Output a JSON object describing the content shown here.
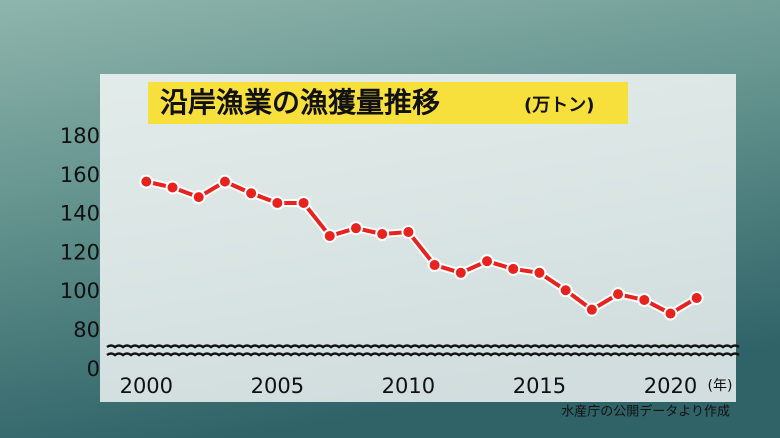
{
  "chart_data": {
    "type": "line",
    "title": "沿岸漁業の漁獲量推移",
    "unit": "(万トン)",
    "x_label": "(年)",
    "source": "水産庁の公開データより作成",
    "x": [
      2000,
      2001,
      2002,
      2003,
      2004,
      2005,
      2006,
      2007,
      2008,
      2009,
      2010,
      2011,
      2012,
      2013,
      2014,
      2015,
      2016,
      2017,
      2018,
      2019,
      2020,
      2021
    ],
    "series": [
      {
        "color": "#e8221c",
        "values": [
          157,
          154,
          149,
          157,
          151,
          146,
          146,
          129,
          133,
          130,
          131,
          114,
          110,
          116,
          112,
          110,
          101,
          91,
          99,
          96,
          89,
          97
        ]
      }
    ],
    "xlim": [
      1998.5,
      2022.5
    ],
    "xticks": [
      2000,
      2005,
      2010,
      2015,
      2020
    ],
    "ylim": [
      0,
      180
    ],
    "yticks": [
      0,
      80,
      100,
      120,
      140,
      160,
      180
    ],
    "y_axis_break": true
  }
}
